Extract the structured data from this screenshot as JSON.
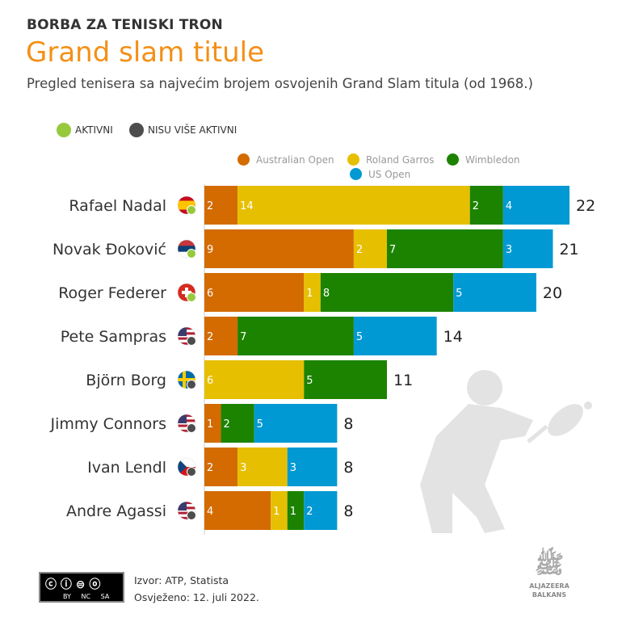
{
  "header": {
    "kicker": "BORBA ZA TENISKI TRON",
    "title": "Grand slam titule",
    "subtitle": "Pregled tenisera sa najvećim brojem osvojenih Grand Slam titula (od 1968.)"
  },
  "status_legend": [
    {
      "label": "AKTIVNI",
      "color": "#97c93d"
    },
    {
      "label": "NISU VIŠE AKTIVNI",
      "color": "#4d4d4d"
    }
  ],
  "chart_data": {
    "type": "bar",
    "orientation": "horizontal",
    "stacked": true,
    "title": "Grand slam titule",
    "series": [
      {
        "name": "Australian Open",
        "color": "#d36b00",
        "values": [
          2,
          9,
          6,
          2,
          0,
          1,
          2,
          4
        ]
      },
      {
        "name": "Roland Garros",
        "color": "#e6bf00",
        "values": [
          14,
          2,
          1,
          0,
          6,
          0,
          3,
          1
        ]
      },
      {
        "name": "Wimbledon",
        "color": "#1c8300",
        "values": [
          2,
          7,
          8,
          7,
          5,
          2,
          0,
          1
        ]
      },
      {
        "name": "US Open",
        "color": "#0099d3",
        "values": [
          4,
          3,
          5,
          5,
          0,
          5,
          3,
          2
        ]
      }
    ],
    "categories": [
      "Rafael Nadal",
      "Novak Đoković",
      "Roger Federer",
      "Pete Sampras",
      "Björn Borg",
      "Jimmy Connors",
      "Ivan Lendl",
      "Andre Agassi"
    ],
    "totals": [
      22,
      21,
      20,
      14,
      11,
      8,
      8,
      8
    ],
    "status": [
      "active",
      "active",
      "active",
      "retired",
      "retired",
      "retired",
      "retired",
      "retired"
    ],
    "flags": [
      "spain",
      "serbia",
      "switzerland",
      "usa",
      "sweden",
      "usa",
      "czech",
      "usa"
    ],
    "xlim": [
      0,
      22
    ],
    "legend": "top"
  },
  "footer": {
    "source": "Izvor: ATP, Statista",
    "updated": "Osvježeno: 12. juli 2022.",
    "license": "BY NC SA",
    "logo": "ALJAZEERA BALKANS"
  }
}
